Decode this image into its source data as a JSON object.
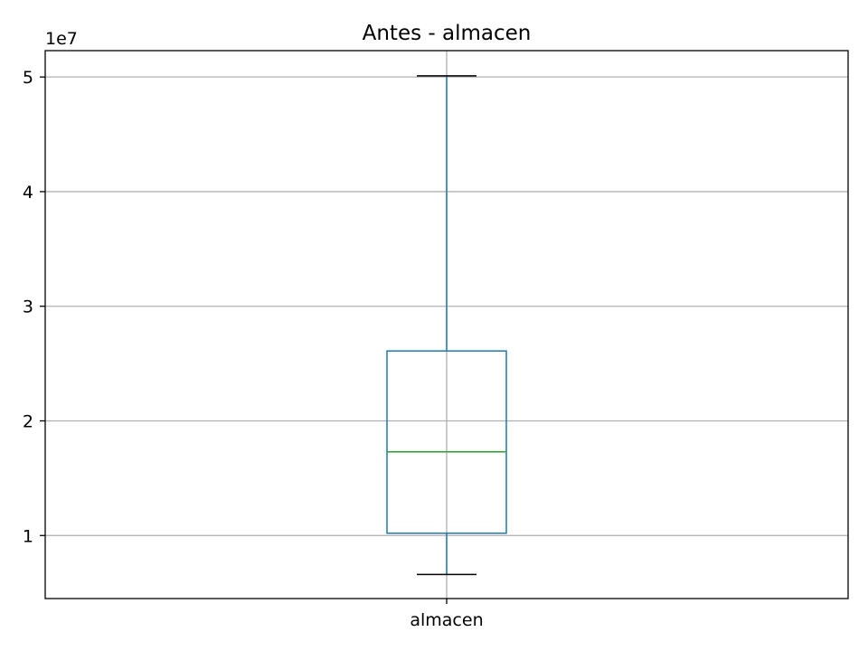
{
  "chart_data": {
    "type": "boxplot",
    "title": "Antes - almacen",
    "xlabel": "",
    "ylabel": "",
    "categories": [
      "almacen"
    ],
    "axis_offset_label": "1e7",
    "scale": 10000000,
    "ylim": [
      0.45,
      5.23
    ],
    "yticks": [
      1,
      2,
      3,
      4,
      5
    ],
    "ytick_labels": [
      "1",
      "2",
      "3",
      "4",
      "5"
    ],
    "grid": true,
    "boxes": [
      {
        "category": "almacen",
        "whisker_low": 0.66,
        "q1": 1.02,
        "median": 1.73,
        "q3": 2.61,
        "whisker_high": 5.01
      }
    ],
    "colors": {
      "box": "#1f77b4",
      "median": "#2ca02c",
      "cap": "#000000",
      "grid": "#b0b0b0",
      "axes": "#000000"
    }
  }
}
